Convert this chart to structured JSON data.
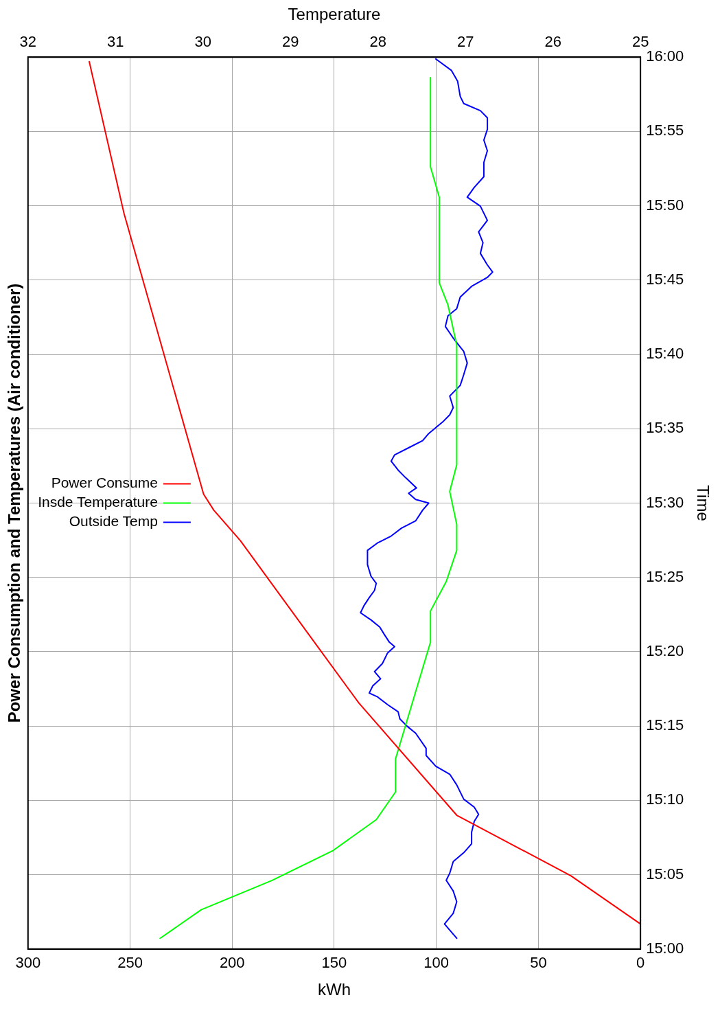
{
  "chart_data": {
    "type": "line",
    "orientation": "horizontal",
    "title": "Power Consumption and Temperatures (Air conditioner)",
    "ylabel": "Time",
    "xlabel": "kWh",
    "x2label": "Temperature",
    "ylim": [
      15,
      16
    ],
    "yticks": [
      {
        "value": 15,
        "label": "15:00"
      },
      {
        "value": 15.0833,
        "label": "15:05"
      },
      {
        "value": 15.1667,
        "label": "15:10"
      },
      {
        "value": 15.25,
        "label": "15:15"
      },
      {
        "value": 15.3333,
        "label": "15:20"
      },
      {
        "value": 15.4167,
        "label": "15:25"
      },
      {
        "value": 15.5,
        "label": "15:30"
      },
      {
        "value": 15.5833,
        "label": "15:35"
      },
      {
        "value": 15.6667,
        "label": "15:40"
      },
      {
        "value": 15.75,
        "label": "15:45"
      },
      {
        "value": 15.8333,
        "label": "15:50"
      },
      {
        "value": 15.9167,
        "label": "15:55"
      },
      {
        "value": 16,
        "label": "16:00"
      }
    ],
    "xlim": [
      300,
      0
    ],
    "xticks": [
      0,
      50,
      100,
      150,
      200,
      250,
      300
    ],
    "x2lim": [
      32,
      25
    ],
    "x2ticks": [
      25,
      26,
      27,
      28,
      29,
      30,
      31,
      32
    ],
    "grid": true,
    "legend": "left",
    "marker": "none",
    "line_style": "solid",
    "series": [
      {
        "name": "Power Consume",
        "color": "#ff0000",
        "x": [
          15.028,
          15.082,
          15.15,
          15.276,
          15.348,
          15.458,
          15.492,
          15.51,
          15.825,
          15.995
        ],
        "values": [
          0,
          34,
          90,
          138,
          161,
          196,
          209,
          214,
          253,
          270
        ]
      },
      {
        "name": "Insde Temperature",
        "color": "#00ff00",
        "axis": "x2",
        "x": [
          15.012,
          15.044,
          15.077,
          15.11,
          15.145,
          15.176,
          15.213,
          15.344,
          15.379,
          15.412,
          15.447,
          15.476,
          15.513,
          15.543,
          15.677,
          15.722,
          15.747,
          15.843,
          15.877,
          15.977
        ],
        "values": [
          30.49,
          30.02,
          29.21,
          28.52,
          28.02,
          27.8,
          27.8,
          27.4,
          27.4,
          27.22,
          27.1,
          27.1,
          27.18,
          27.1,
          27.1,
          27.2,
          27.3,
          27.3,
          27.4,
          27.4
        ]
      },
      {
        "name": "Outside Temp",
        "color": "#0000ff",
        "axis": "x2",
        "x": [
          15.012,
          15.028,
          15.04,
          15.053,
          15.065,
          15.077,
          15.085,
          15.098,
          15.108,
          15.118,
          15.131,
          15.143,
          15.151,
          15.159,
          15.168,
          15.184,
          15.196,
          15.205,
          15.217,
          15.225,
          15.242,
          15.25,
          15.258,
          15.266,
          15.274,
          15.283,
          15.287,
          15.295,
          15.303,
          15.311,
          15.32,
          15.332,
          15.339,
          15.344,
          15.353,
          15.361,
          15.369,
          15.377,
          15.385,
          15.394,
          15.402,
          15.41,
          15.418,
          15.431,
          15.447,
          15.455,
          15.463,
          15.472,
          15.48,
          15.492,
          15.5,
          15.504,
          15.511,
          15.517,
          15.529,
          15.537,
          15.547,
          15.554,
          15.562,
          15.57,
          15.578,
          15.591,
          15.599,
          15.607,
          15.62,
          15.632,
          15.644,
          15.657,
          15.67,
          15.685,
          15.698,
          15.71,
          15.718,
          15.731,
          15.743,
          15.753,
          15.759,
          15.767,
          15.78,
          15.792,
          15.804,
          15.817,
          15.833,
          15.843,
          15.854,
          15.866,
          15.882,
          15.895,
          15.907,
          15.919,
          15.932,
          15.94,
          15.948,
          15.956,
          15.973,
          15.985,
          15.998
        ],
        "values": [
          27.1,
          27.24,
          27.14,
          27.1,
          27.14,
          27.22,
          27.18,
          27.14,
          27.02,
          26.93,
          26.93,
          26.9,
          26.85,
          26.9,
          27.02,
          27.1,
          27.18,
          27.34,
          27.45,
          27.45,
          27.57,
          27.67,
          27.75,
          27.77,
          27.89,
          28.01,
          28.1,
          28.06,
          27.97,
          28.04,
          27.95,
          27.89,
          27.81,
          27.87,
          27.93,
          27.98,
          28.08,
          28.2,
          28.16,
          28.1,
          28.04,
          28.02,
          28.08,
          28.12,
          28.12,
          28.01,
          27.85,
          27.73,
          27.57,
          27.49,
          27.42,
          27.57,
          27.65,
          27.56,
          27.69,
          27.77,
          27.85,
          27.81,
          27.65,
          27.49,
          27.42,
          27.26,
          27.18,
          27.14,
          27.18,
          27.06,
          27.02,
          26.98,
          27.02,
          27.14,
          27.23,
          27.2,
          27.1,
          27.06,
          26.93,
          26.75,
          26.69,
          26.75,
          26.83,
          26.8,
          26.85,
          26.75,
          26.83,
          26.98,
          26.9,
          26.79,
          26.79,
          26.75,
          26.79,
          26.75,
          26.75,
          26.83,
          27.02,
          27.06,
          27.09,
          27.16,
          27.34
        ]
      }
    ]
  }
}
